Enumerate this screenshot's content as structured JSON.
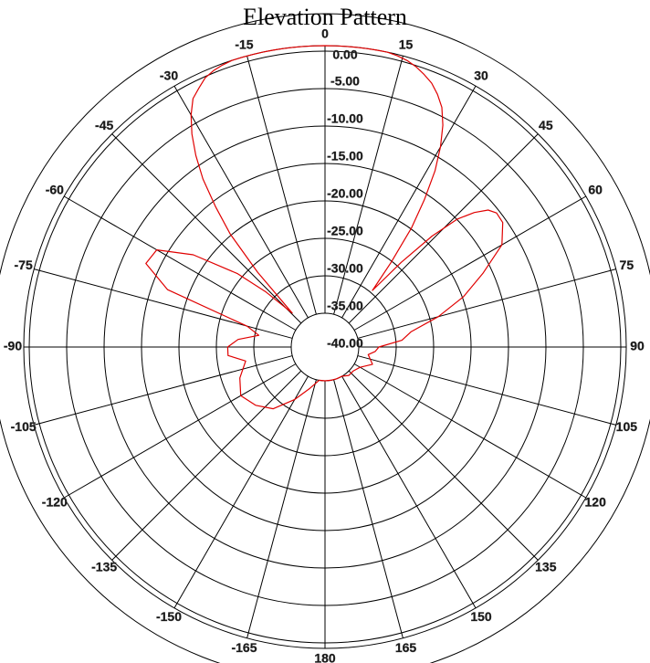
{
  "chart_data": {
    "type": "polar-line",
    "title": "Elevation Pattern",
    "radial_ticks": [
      "0.00",
      "-5.00",
      "-10.00",
      "-15.00",
      "-20.00",
      "-25.00",
      "-30.00",
      "-35.00",
      "-40.00"
    ],
    "radial_range_db": [
      -40,
      0
    ],
    "angle_ticks": [
      "0",
      "15",
      "30",
      "45",
      "60",
      "75",
      "90",
      "105",
      "120",
      "135",
      "150",
      "165",
      "180",
      "-165",
      "-150",
      "-135",
      "-120",
      "-105",
      "-90",
      "-75",
      "-60",
      "-45",
      "-30",
      "-15"
    ],
    "angle_values_deg": [
      0,
      15,
      30,
      45,
      60,
      75,
      90,
      105,
      120,
      135,
      150,
      165,
      180,
      -165,
      -150,
      -135,
      -120,
      -105,
      -90,
      -75,
      -60,
      -45,
      -30,
      -15
    ],
    "grid": true,
    "series": [
      {
        "color": "#e00000",
        "angles_deg": [
          -180,
          -170,
          -160,
          -150,
          -140,
          -130,
          -120,
          -110,
          -100,
          -95,
          -90,
          -85,
          -80,
          -75,
          -70,
          -65,
          -60,
          -55,
          -50,
          -47,
          -44,
          -42,
          -40,
          -38,
          -36,
          -34,
          -32,
          -30,
          -28,
          -26,
          -24,
          -22,
          -20,
          -18,
          -16,
          -14,
          -12,
          -10,
          -8,
          -6,
          -4,
          -2,
          0,
          2,
          4,
          6,
          8,
          10,
          12,
          14,
          16,
          18,
          20,
          22,
          24,
          26,
          28,
          30,
          32,
          34,
          36,
          38,
          40,
          42,
          44,
          46,
          48,
          50,
          52,
          55,
          60,
          65,
          70,
          75,
          80,
          85,
          90,
          95,
          100,
          110,
          120,
          130,
          140,
          150,
          160,
          170,
          180
        ],
        "gain_db": [
          -40,
          -40,
          -38.5,
          -36,
          -33,
          -31.5,
          -30.5,
          -31.5,
          -33,
          -30.5,
          -30.5,
          -32,
          -35,
          -33,
          -20,
          -15.5,
          -16,
          -21,
          -28,
          -33,
          -38,
          -30,
          -23,
          -18.5,
          -14,
          -10.5,
          -7.5,
          -5,
          -3,
          -2,
          -1,
          -0.5,
          -0.2,
          0,
          0,
          0,
          0,
          0,
          0,
          0,
          0,
          0,
          0,
          0,
          0,
          0,
          0,
          0,
          0,
          -0.2,
          -0.5,
          -1,
          -1.7,
          -2.5,
          -3.7,
          -5.2,
          -7.5,
          -10.5,
          -14,
          -18.5,
          -23,
          -29,
          -34,
          -28,
          -22,
          -17.5,
          -15,
          -13.2,
          -12.5,
          -12.6,
          -14.5,
          -19,
          -23,
          -27.5,
          -32,
          -33.5,
          -37,
          -37.5,
          -38.5,
          -37.5,
          -39,
          -39.5,
          -39.5,
          -40,
          -40,
          -40,
          -40
        ]
      }
    ]
  }
}
